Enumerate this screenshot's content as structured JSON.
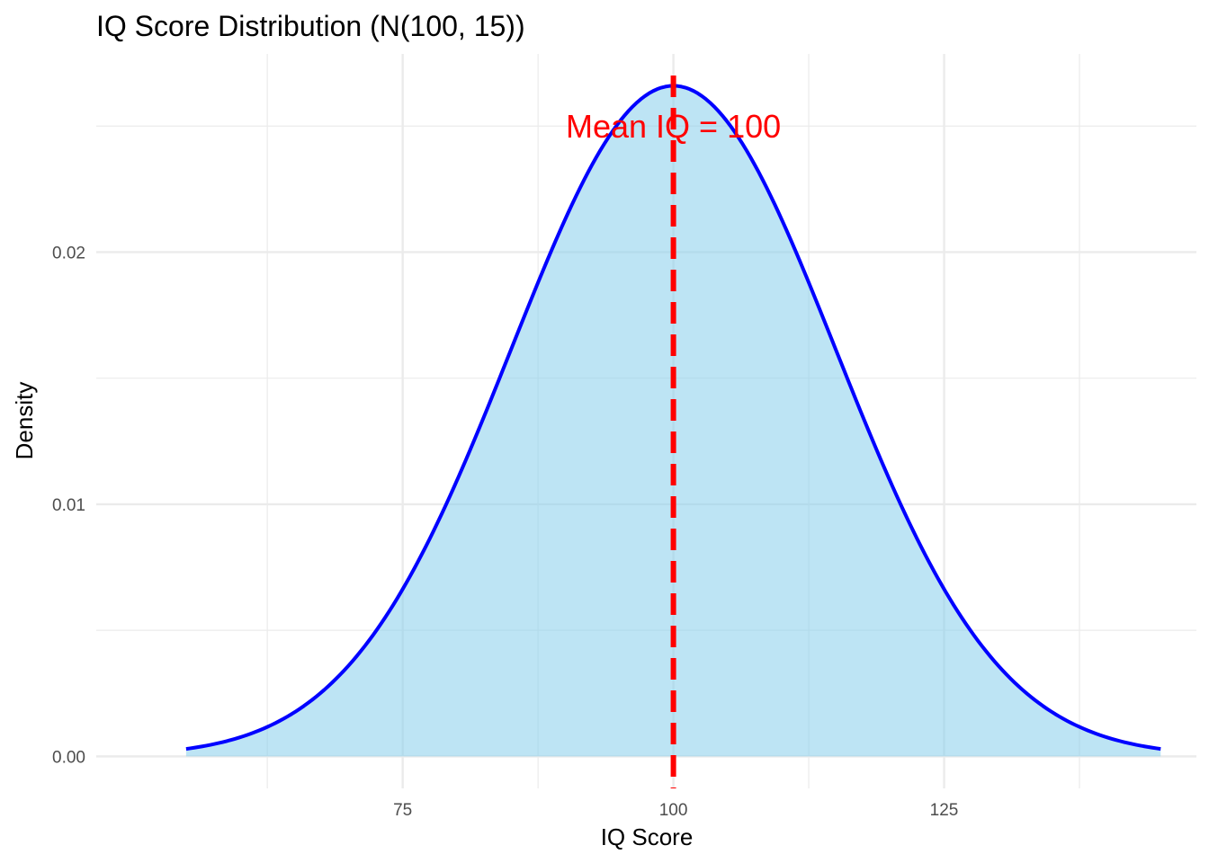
{
  "chart_data": {
    "type": "area",
    "title": "IQ Score Distribution (N(100, 15))",
    "xlabel": "IQ Score",
    "ylabel": "Density",
    "distribution": {
      "mean": 100,
      "sd": 15
    },
    "x_range": [
      55,
      145
    ],
    "xlim": [
      46.7,
      148.3
    ],
    "ylim": [
      -0.00127,
      0.02786
    ],
    "x_ticks": [
      75,
      100,
      125
    ],
    "x_tick_labels": [
      "75",
      "100",
      "125"
    ],
    "x_minor_ticks": [
      62.5,
      87.5,
      112.5,
      137.5
    ],
    "y_ticks": [
      0,
      0.01,
      0.02
    ],
    "y_tick_labels": [
      "0.00",
      "0.01",
      "0.02"
    ],
    "y_minor_ticks": [
      0.005,
      0.015,
      0.025
    ],
    "x": [
      55,
      60,
      65,
      70,
      75,
      80,
      85,
      90,
      95,
      100,
      105,
      110,
      115,
      120,
      125,
      130,
      135,
      140,
      145
    ],
    "y": [
      0.000295,
      0.00076,
      0.001748,
      0.003599,
      0.00664,
      0.010934,
      0.016131,
      0.021297,
      0.025159,
      0.026596,
      0.025159,
      0.021297,
      0.016131,
      0.010934,
      0.00664,
      0.003599,
      0.001748,
      0.00076,
      0.000295
    ],
    "mean_line": {
      "x": 100,
      "style": "dashed"
    },
    "annotation": {
      "text": "Mean IQ = 100",
      "x": 100,
      "y": 0.025
    },
    "grid": true,
    "colors": {
      "fill": "#87CEEB",
      "line": "#0000FF",
      "mean": "#FF0000",
      "grid": "#EBEBEB"
    }
  }
}
